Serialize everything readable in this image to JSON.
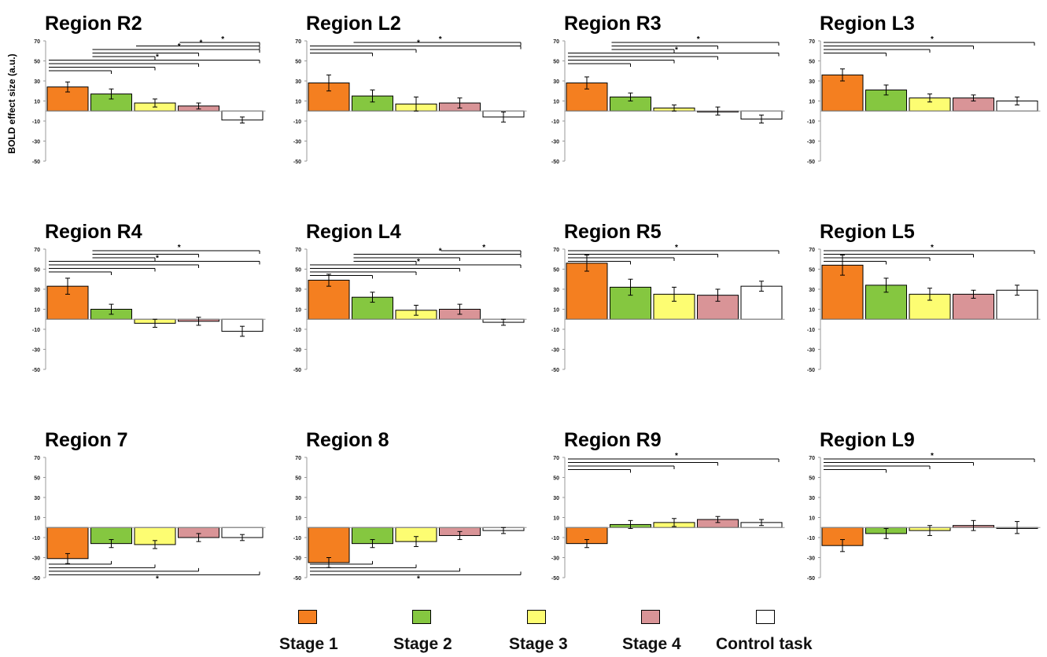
{
  "y_axis_label": "BOLD effect size (a.u.)",
  "colors": {
    "Stage 1": "#f47f20",
    "Stage 2": "#85c740",
    "Stage 3": "#fdfd72",
    "Stage 4": "#d99497",
    "Control task": "#ffffff"
  },
  "legend": {
    "items": [
      {
        "label": "Stage 1"
      },
      {
        "label": "Stage 2"
      },
      {
        "label": "Stage 3"
      },
      {
        "label": "Stage 4"
      },
      {
        "label": "Control task"
      }
    ]
  },
  "chart_data": [
    {
      "type": "bar",
      "title": "Region R2",
      "ylabel": "BOLD effect size (a.u.)",
      "categories": [
        "Stage 1",
        "Stage 2",
        "Stage 3",
        "Stage 4",
        "Control task"
      ],
      "values": [
        24,
        17,
        8,
        5,
        -9
      ],
      "errors": [
        5,
        5,
        4,
        3,
        3
      ],
      "yticks": [
        70,
        50,
        30,
        10,
        -10,
        -30,
        -50
      ],
      "ylim": [
        -50,
        70
      ],
      "significance": [
        {
          "from": 0,
          "to": [
            1,
            2,
            3,
            4
          ],
          "label": "*"
        },
        {
          "from": 1,
          "to": [
            2,
            3,
            4
          ],
          "label": "*"
        },
        {
          "from": 2,
          "to": [
            4
          ],
          "label": "*"
        },
        {
          "from": 3,
          "to": [
            4
          ],
          "label": "*"
        }
      ]
    },
    {
      "type": "bar",
      "title": "Region L2",
      "categories": [
        "Stage 1",
        "Stage 2",
        "Stage 3",
        "Stage 4",
        "Control task"
      ],
      "values": [
        28,
        15,
        7,
        8,
        -6
      ],
      "errors": [
        8,
        6,
        7,
        5,
        5
      ],
      "yticks": [
        70,
        50,
        30,
        10,
        -10,
        -30,
        -50
      ],
      "ylim": [
        -50,
        70
      ],
      "significance": [
        {
          "from": 0,
          "to": [
            1,
            2,
            4
          ],
          "label": "*"
        },
        {
          "from": 1,
          "to": [
            4
          ],
          "label": "*"
        }
      ]
    },
    {
      "type": "bar",
      "title": "Region R3",
      "categories": [
        "Stage 1",
        "Stage 2",
        "Stage 3",
        "Stage 4",
        "Control task"
      ],
      "values": [
        28,
        14,
        3,
        0,
        -8
      ],
      "errors": [
        6,
        4,
        3,
        4,
        4
      ],
      "yticks": [
        70,
        50,
        30,
        10,
        -10,
        -30,
        -50
      ],
      "ylim": [
        -50,
        70
      ],
      "significance": [
        {
          "from": 0,
          "to": [
            1,
            2,
            3,
            4
          ],
          "label": "*"
        },
        {
          "from": 1,
          "to": [
            2,
            3,
            4
          ],
          "label": "*"
        }
      ]
    },
    {
      "type": "bar",
      "title": "Region L3",
      "categories": [
        "Stage 1",
        "Stage 2",
        "Stage 3",
        "Stage 4",
        "Control task"
      ],
      "values": [
        36,
        21,
        13,
        13,
        10
      ],
      "errors": [
        6,
        5,
        4,
        3,
        4
      ],
      "yticks": [
        70,
        50,
        30,
        10,
        -10,
        -30,
        -50
      ],
      "ylim": [
        -50,
        70
      ],
      "significance": [
        {
          "from": 0,
          "to": [
            1,
            2,
            3,
            4
          ],
          "label": "*"
        }
      ]
    },
    {
      "type": "bar",
      "title": "Region R4",
      "categories": [
        "Stage 1",
        "Stage 2",
        "Stage 3",
        "Stage 4",
        "Control task"
      ],
      "values": [
        33,
        10,
        -4,
        -2,
        -12
      ],
      "errors": [
        8,
        5,
        4,
        4,
        5
      ],
      "yticks": [
        70,
        50,
        30,
        10,
        -10,
        -30,
        -50
      ],
      "ylim": [
        -50,
        70
      ],
      "significance": [
        {
          "from": 0,
          "to": [
            1,
            2,
            3,
            4
          ],
          "label": "*"
        },
        {
          "from": 1,
          "to": [
            2,
            3,
            4
          ],
          "label": "*"
        }
      ]
    },
    {
      "type": "bar",
      "title": "Region L4",
      "categories": [
        "Stage 1",
        "Stage 2",
        "Stage 3",
        "Stage 4",
        "Control task"
      ],
      "values": [
        39,
        22,
        9,
        10,
        -3
      ],
      "errors": [
        6,
        5,
        5,
        5,
        3
      ],
      "yticks": [
        70,
        50,
        30,
        10,
        -10,
        -30,
        -50
      ],
      "ylim": [
        -50,
        70
      ],
      "significance": [
        {
          "from": 0,
          "to": [
            1,
            2,
            3,
            4
          ],
          "label": "*"
        },
        {
          "from": 1,
          "to": [
            2,
            3,
            4
          ],
          "label": "*"
        },
        {
          "from": 3,
          "to": [
            4
          ],
          "label": "*"
        }
      ]
    },
    {
      "type": "bar",
      "title": "Region R5",
      "categories": [
        "Stage 1",
        "Stage 2",
        "Stage 3",
        "Stage 4",
        "Control task"
      ],
      "values": [
        56,
        32,
        25,
        24,
        33
      ],
      "errors": [
        8,
        8,
        7,
        6,
        5
      ],
      "yticks": [
        70,
        50,
        30,
        10,
        -10,
        -30,
        -50
      ],
      "ylim": [
        -50,
        70
      ],
      "significance": [
        {
          "from": 0,
          "to": [
            1,
            2,
            3,
            4
          ],
          "label": "*"
        }
      ]
    },
    {
      "type": "bar",
      "title": "Region L5",
      "categories": [
        "Stage 1",
        "Stage 2",
        "Stage 3",
        "Stage 4",
        "Control task"
      ],
      "values": [
        54,
        34,
        25,
        25,
        29
      ],
      "errors": [
        10,
        7,
        6,
        4,
        5
      ],
      "yticks": [
        70,
        50,
        30,
        10,
        -10,
        -30,
        -50
      ],
      "ylim": [
        -50,
        70
      ],
      "significance": [
        {
          "from": 0,
          "to": [
            1,
            2,
            3,
            4
          ],
          "label": "*"
        }
      ]
    },
    {
      "type": "bar",
      "title": "Region 7",
      "categories": [
        "Stage 1",
        "Stage 2",
        "Stage 3",
        "Stage 4",
        "Control task"
      ],
      "values": [
        -31,
        -16,
        -17,
        -10,
        -10
      ],
      "errors": [
        5,
        4,
        4,
        4,
        3
      ],
      "yticks": [
        70,
        50,
        30,
        10,
        -10,
        -30,
        -50
      ],
      "ylim": [
        -50,
        70
      ],
      "significance": [
        {
          "from": 0,
          "to": [
            1,
            2,
            3,
            4
          ],
          "label": "*"
        }
      ]
    },
    {
      "type": "bar",
      "title": "Region 8",
      "categories": [
        "Stage 1",
        "Stage 2",
        "Stage 3",
        "Stage 4",
        "Control task"
      ],
      "values": [
        -35,
        -16,
        -14,
        -8,
        -3
      ],
      "errors": [
        5,
        4,
        5,
        4,
        3
      ],
      "yticks": [
        70,
        50,
        30,
        10,
        -10,
        -30,
        -50
      ],
      "ylim": [
        -50,
        70
      ],
      "significance": [
        {
          "from": 0,
          "to": [
            1,
            2,
            3,
            4
          ],
          "label": "*"
        }
      ]
    },
    {
      "type": "bar",
      "title": "Region R9",
      "categories": [
        "Stage 1",
        "Stage 2",
        "Stage 3",
        "Stage 4",
        "Control task"
      ],
      "values": [
        -16,
        3,
        5,
        8,
        5
      ],
      "errors": [
        4,
        4,
        4,
        3,
        3
      ],
      "yticks": [
        70,
        50,
        30,
        10,
        -10,
        -30,
        -50
      ],
      "ylim": [
        -50,
        70
      ],
      "significance": [
        {
          "from": 0,
          "to": [
            1,
            2,
            3,
            4
          ],
          "label": "*"
        }
      ]
    },
    {
      "type": "bar",
      "title": "Region L9",
      "categories": [
        "Stage 1",
        "Stage 2",
        "Stage 3",
        "Stage 4",
        "Control task"
      ],
      "values": [
        -18,
        -6,
        -3,
        2,
        0
      ],
      "errors": [
        6,
        5,
        5,
        5,
        6
      ],
      "yticks": [
        70,
        50,
        30,
        10,
        -10,
        -30,
        -50
      ],
      "ylim": [
        -50,
        70
      ],
      "significance": [
        {
          "from": 0,
          "to": [
            1,
            2,
            3,
            4
          ],
          "label": "*"
        }
      ]
    }
  ]
}
